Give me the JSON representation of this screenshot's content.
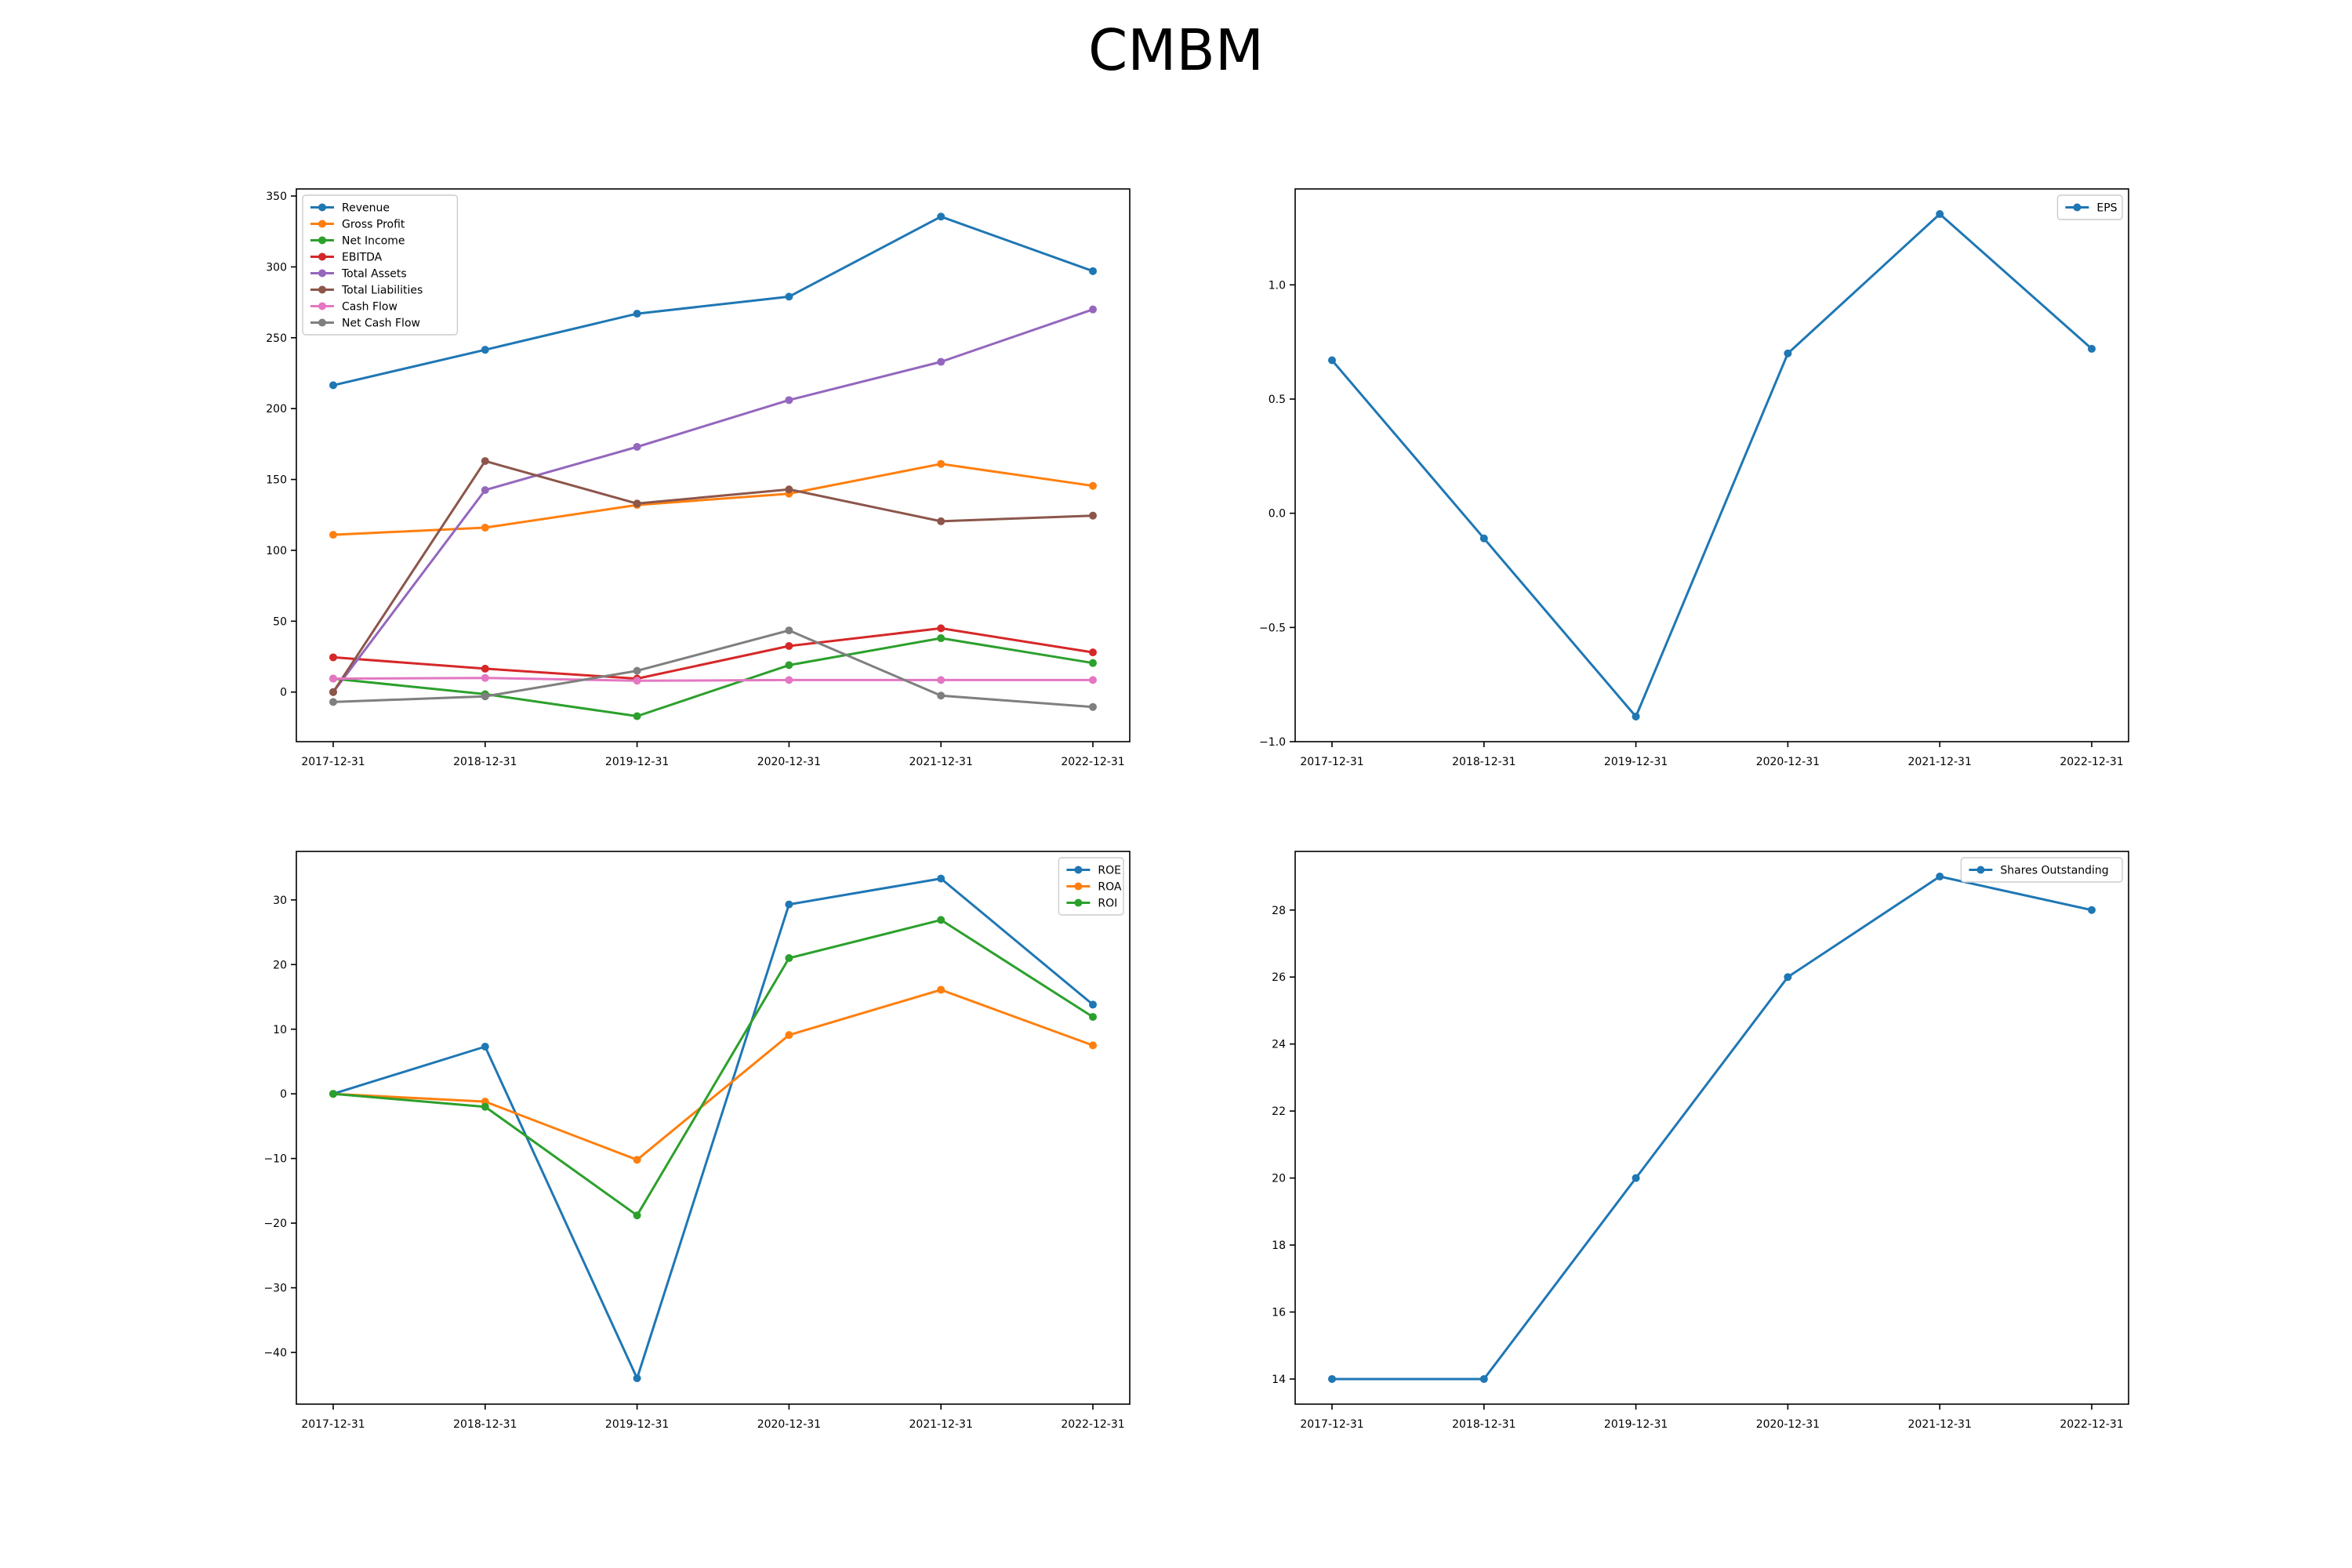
{
  "title": "CMBM",
  "colors": {
    "c0": "#1f77b4",
    "c1": "#ff7f0e",
    "c2": "#2ca02c",
    "c3": "#d62728",
    "c4": "#9467bd",
    "c5": "#8c564b",
    "c6": "#e377c2",
    "c7": "#7f7f7f"
  },
  "chart_data": [
    {
      "type": "line",
      "categories": [
        "2017-12-31",
        "2018-12-31",
        "2019-12-31",
        "2020-12-31",
        "2021-12-31",
        "2022-12-31"
      ],
      "ylim": [
        -35,
        355
      ],
      "yticks": [
        0,
        50,
        100,
        150,
        200,
        250,
        300,
        350
      ],
      "legend": "top-left",
      "grid": false,
      "series": [
        {
          "name": "Revenue",
          "color": "#1f77b4",
          "values": [
            216.5,
            241.5,
            267,
            279,
            335.5,
            297
          ]
        },
        {
          "name": "Gross Profit",
          "color": "#ff7f0e",
          "values": [
            111,
            116,
            132,
            140,
            161,
            145.5
          ]
        },
        {
          "name": "Net Income",
          "color": "#2ca02c",
          "values": [
            9.5,
            -1.5,
            -17,
            19,
            38,
            20.5
          ]
        },
        {
          "name": "EBITDA",
          "color": "#d62728",
          "values": [
            24.5,
            16.5,
            9.5,
            32.5,
            45,
            28
          ]
        },
        {
          "name": "Total Assets",
          "color": "#9467bd",
          "values": [
            0,
            142.5,
            173,
            206,
            233,
            270
          ]
        },
        {
          "name": "Total Liabilities",
          "color": "#8c564b",
          "values": [
            0,
            163,
            133,
            143,
            120.5,
            124.5
          ]
        },
        {
          "name": "Cash Flow",
          "color": "#e377c2",
          "values": [
            9.5,
            10,
            8,
            8.5,
            8.5,
            8.5
          ]
        },
        {
          "name": "Net Cash Flow",
          "color": "#7f7f7f",
          "values": [
            -7,
            -3,
            15,
            43.5,
            -2.5,
            -10.5
          ]
        }
      ]
    },
    {
      "type": "line",
      "categories": [
        "2017-12-31",
        "2018-12-31",
        "2019-12-31",
        "2020-12-31",
        "2021-12-31",
        "2022-12-31"
      ],
      "ylim": [
        -1.0,
        1.42
      ],
      "yticks": [
        -1.0,
        -0.5,
        0.0,
        0.5,
        1.0
      ],
      "legend": "top-right",
      "grid": false,
      "series": [
        {
          "name": "EPS",
          "color": "#1f77b4",
          "values": [
            0.67,
            -0.11,
            -0.89,
            0.7,
            1.31,
            0.72
          ]
        }
      ]
    },
    {
      "type": "line",
      "categories": [
        "2017-12-31",
        "2018-12-31",
        "2019-12-31",
        "2020-12-31",
        "2021-12-31",
        "2022-12-31"
      ],
      "ylim": [
        -48,
        37.5
      ],
      "yticks": [
        -40,
        -30,
        -20,
        -10,
        0,
        10,
        20,
        30
      ],
      "legend": "top-right",
      "grid": false,
      "series": [
        {
          "name": "ROE",
          "color": "#1f77b4",
          "values": [
            0,
            7.3,
            -44,
            29.3,
            33.3,
            13.8
          ]
        },
        {
          "name": "ROA",
          "color": "#ff7f0e",
          "values": [
            0,
            -1.2,
            -10.2,
            9.1,
            16.1,
            7.5
          ]
        },
        {
          "name": "ROI",
          "color": "#2ca02c",
          "values": [
            0,
            -2,
            -18.8,
            21,
            26.9,
            11.9
          ]
        }
      ]
    },
    {
      "type": "line",
      "categories": [
        "2017-12-31",
        "2018-12-31",
        "2019-12-31",
        "2020-12-31",
        "2021-12-31",
        "2022-12-31"
      ],
      "ylim": [
        13.25,
        29.75
      ],
      "yticks": [
        14,
        16,
        18,
        20,
        22,
        24,
        26,
        28
      ],
      "legend": "top-right",
      "grid": false,
      "series": [
        {
          "name": "Shares Outstanding",
          "color": "#1f77b4",
          "values": [
            14,
            14,
            20,
            26,
            29,
            28
          ]
        }
      ]
    }
  ]
}
